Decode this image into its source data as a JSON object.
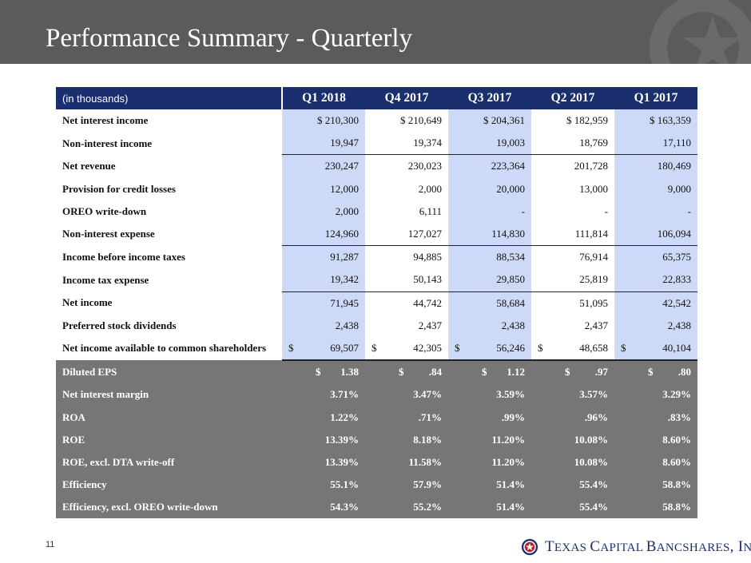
{
  "header": {
    "title": "Performance Summary - Quarterly"
  },
  "table": {
    "unit_label": "(in thousands)",
    "columns": [
      "Q1 2018",
      "Q4 2017",
      "Q3 2017",
      "Q2 2017",
      "Q1 2017"
    ],
    "rows": [
      {
        "label": "Net interest income",
        "values": [
          "$ 210,300",
          "$ 210,649",
          "$ 204,361",
          "$ 182,959",
          "$ 163,359"
        ]
      },
      {
        "label": "Non-interest income",
        "values": [
          "19,947",
          "19,374",
          "19,003",
          "18,769",
          "17,110"
        ]
      },
      {
        "label": "Net revenue",
        "values": [
          "230,247",
          "230,023",
          "223,364",
          "201,728",
          "180,469"
        ]
      },
      {
        "label": "Provision for credit losses",
        "values": [
          "12,000",
          "2,000",
          "20,000",
          "13,000",
          "9,000"
        ]
      },
      {
        "label": "OREO write-down",
        "values": [
          "2,000",
          "6,111",
          "-",
          "-",
          "-"
        ]
      },
      {
        "label": "Non-interest expense",
        "values": [
          "124,960",
          "127,027",
          "114,830",
          "111,814",
          "106,094"
        ]
      },
      {
        "label": "Income before income taxes",
        "values": [
          "91,287",
          "94,885",
          "88,534",
          "76,914",
          "65,375"
        ]
      },
      {
        "label": "Income tax expense",
        "values": [
          "19,342",
          "50,143",
          "29,850",
          "25,819",
          "22,833"
        ]
      },
      {
        "label": "Net income",
        "values": [
          "71,945",
          "44,742",
          "58,684",
          "51,095",
          "42,542"
        ]
      },
      {
        "label": "Preferred stock dividends",
        "values": [
          "2,438",
          "2,437",
          "2,438",
          "2,437",
          "2,438"
        ]
      },
      {
        "label": "Net income available to common shareholders",
        "values": [
          {
            "cur": "$",
            "amt": "69,507"
          },
          {
            "cur": "$",
            "amt": "42,305"
          },
          {
            "cur": "$",
            "amt": "56,246"
          },
          {
            "cur": "$",
            "amt": "48,658"
          },
          {
            "cur": "$",
            "amt": "40,104"
          }
        ]
      }
    ],
    "ratio_rows": [
      {
        "label": "Diluted EPS",
        "values": [
          {
            "cur": "$",
            "amt": "1.38"
          },
          {
            "cur": "$",
            "amt": ".84"
          },
          {
            "cur": "$",
            "amt": "1.12"
          },
          {
            "cur": "$",
            "amt": ".97"
          },
          {
            "cur": "$",
            "amt": ".80"
          }
        ]
      },
      {
        "label": "Net interest margin",
        "values": [
          "3.71%",
          "3.47%",
          "3.59%",
          "3.57%",
          "3.29%"
        ]
      },
      {
        "label": "ROA",
        "values": [
          "1.22%",
          ".71%",
          ".99%",
          ".96%",
          ".83%"
        ]
      },
      {
        "label": "ROE",
        "values": [
          "13.39%",
          "8.18%",
          "11.20%",
          "10.08%",
          "8.60%"
        ]
      },
      {
        "label": "ROE, excl. DTA write-off",
        "values": [
          "13.39%",
          "11.58%",
          "11.20%",
          "10.08%",
          "8.60%"
        ]
      },
      {
        "label": "Efficiency",
        "values": [
          "55.1%",
          "57.9%",
          "51.4%",
          "55.4%",
          "58.8%"
        ]
      },
      {
        "label": "Efficiency, excl. OREO write-down",
        "values": [
          "54.3%",
          "55.2%",
          "51.4%",
          "55.4%",
          "58.8%"
        ]
      }
    ]
  },
  "footer": {
    "page_number": "11",
    "logo": {
      "part1": "T",
      "part2": "EXAS ",
      "part3": "C",
      "part4": "APITAL ",
      "part5": "B",
      "part6": "ANCSHARES",
      "part7": ", I",
      "part8": "NC",
      "part9": "."
    }
  },
  "colors": {
    "header_bg": "#5b5b5b",
    "navy": "#1b2f6e",
    "highlight": "#ccd9f7",
    "ratio_bg": "#767676"
  }
}
